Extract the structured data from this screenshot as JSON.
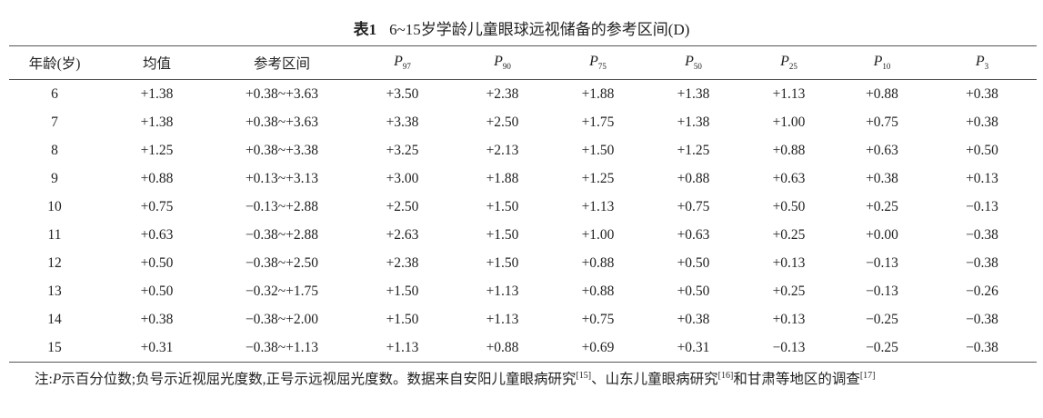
{
  "title": {
    "label": "表1",
    "text": "6~15岁学龄儿童眼球远视储备的参考区间(D)"
  },
  "table": {
    "headers": [
      {
        "main": "年龄(岁)"
      },
      {
        "main": "均值"
      },
      {
        "main": "参考区间"
      },
      {
        "main": "P",
        "sub": "97"
      },
      {
        "main": "P",
        "sub": "90"
      },
      {
        "main": "P",
        "sub": "75"
      },
      {
        "main": "P",
        "sub": "50"
      },
      {
        "main": "P",
        "sub": "25"
      },
      {
        "main": "P",
        "sub": "10"
      },
      {
        "main": "P",
        "sub": "3"
      }
    ],
    "rows": [
      [
        "6",
        "+1.38",
        "+0.38~+3.63",
        "+3.50",
        "+2.38",
        "+1.88",
        "+1.38",
        "+1.13",
        "+0.88",
        "+0.38"
      ],
      [
        "7",
        "+1.38",
        "+0.38~+3.63",
        "+3.38",
        "+2.50",
        "+1.75",
        "+1.38",
        "+1.00",
        "+0.75",
        "+0.38"
      ],
      [
        "8",
        "+1.25",
        "+0.38~+3.38",
        "+3.25",
        "+2.13",
        "+1.50",
        "+1.25",
        "+0.88",
        "+0.63",
        "+0.50"
      ],
      [
        "9",
        "+0.88",
        "+0.13~+3.13",
        "+3.00",
        "+1.88",
        "+1.25",
        "+0.88",
        "+0.63",
        "+0.38",
        "+0.13"
      ],
      [
        "10",
        "+0.75",
        "−0.13~+2.88",
        "+2.50",
        "+1.50",
        "+1.13",
        "+0.75",
        "+0.50",
        "+0.25",
        "−0.13"
      ],
      [
        "11",
        "+0.63",
        "−0.38~+2.88",
        "+2.63",
        "+1.50",
        "+1.00",
        "+0.63",
        "+0.25",
        "+0.00",
        "−0.38"
      ],
      [
        "12",
        "+0.50",
        "−0.38~+2.50",
        "+2.38",
        "+1.50",
        "+0.88",
        "+0.50",
        "+0.13",
        "−0.13",
        "−0.38"
      ],
      [
        "13",
        "+0.50",
        "−0.32~+1.75",
        "+1.50",
        "+1.13",
        "+0.88",
        "+0.50",
        "+0.25",
        "−0.13",
        "−0.26"
      ],
      [
        "14",
        "+0.38",
        "−0.38~+2.00",
        "+1.50",
        "+1.13",
        "+0.75",
        "+0.38",
        "+0.13",
        "−0.25",
        "−0.38"
      ],
      [
        "15",
        "+0.31",
        "−0.38~+1.13",
        "+1.13",
        "+0.88",
        "+0.69",
        "+0.31",
        "−0.13",
        "−0.25",
        "−0.38"
      ]
    ]
  },
  "note": [
    {
      "text": "注:"
    },
    {
      "text": "P",
      "style": "italic"
    },
    {
      "text": "示百分位数;负号示近视屈光度数,正号示远视屈光度数。数据来自安阳儿童眼病研究"
    },
    {
      "text": "[15]",
      "style": "sup"
    },
    {
      "text": "、山东儿童眼病研究"
    },
    {
      "text": "[16]",
      "style": "sup"
    },
    {
      "text": "和甘肃等地区的调查"
    },
    {
      "text": "[17]",
      "style": "sup"
    }
  ]
}
